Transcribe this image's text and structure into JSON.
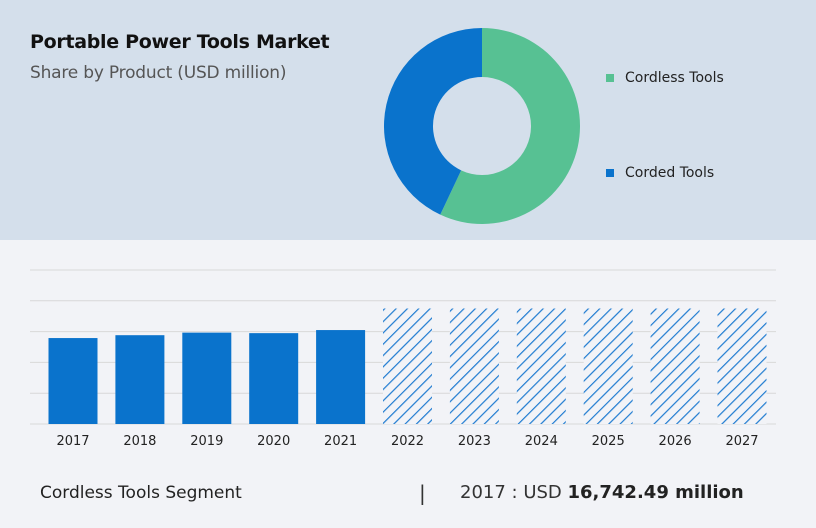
{
  "header": {
    "title": "Portable Power Tools Market",
    "subtitle": "Share by Product (USD million)"
  },
  "colors": {
    "cordless": "#57c193",
    "corded": "#0a73cc",
    "bar": "#0a73cc",
    "hatch": "#1f7bd1",
    "grid": "#d8d8d8",
    "axis_text": "#222222"
  },
  "legend": [
    {
      "label": "Cordless Tools",
      "color": "#57c193"
    },
    {
      "label": "Corded Tools",
      "color": "#0a73cc"
    }
  ],
  "chart_data": [
    {
      "type": "pie",
      "variant": "donut",
      "slices": [
        {
          "label": "Cordless Tools",
          "value": 57
        },
        {
          "label": "Corded Tools",
          "value": 43
        }
      ]
    },
    {
      "type": "bar",
      "categories": [
        "2017",
        "2018",
        "2019",
        "2020",
        "2021",
        "2022",
        "2023",
        "2024",
        "2025",
        "2026",
        "2027"
      ],
      "values": [
        16742.49,
        17300,
        17800,
        17700,
        18300,
        22500,
        22500,
        22500,
        22500,
        22500,
        22500
      ],
      "forecast_from_index": 5,
      "forecast_style": "hatched",
      "ylim": [
        0,
        30000
      ],
      "grid": true
    }
  ],
  "footer": {
    "segment_label": "Cordless Tools Segment",
    "separator": "|",
    "value_prefix": "2017 : USD ",
    "value_bold": "16,742.49 million"
  }
}
